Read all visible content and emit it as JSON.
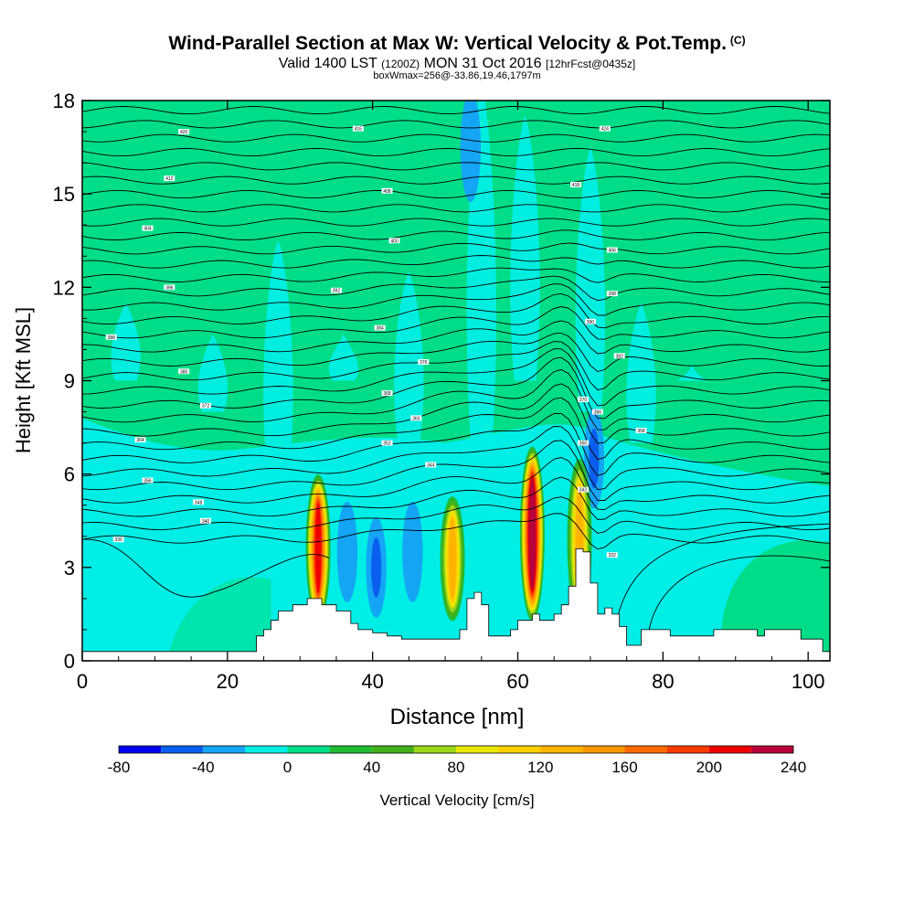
{
  "header": {
    "title": "Wind-Parallel Section at Max W: Vertical Velocity & Pot.Temp.",
    "copyright": "(C)",
    "valid_pre": "Valid 1400 LST",
    "valid_z": "(1200Z)",
    "valid_date": "MON 31 Oct 2016",
    "forecast": "[12hrFcst@0435z]",
    "box_info": "boxWmax=256@-33.86,19.46,1797m"
  },
  "chart_data": {
    "type": "heatmap",
    "title": "Wind-Parallel Section at Max W: Vertical Velocity & Pot.Temp.",
    "xlabel": "Distance [nm]",
    "ylabel": "Height [Kft MSL]",
    "xlim": [
      0,
      103
    ],
    "ylim": [
      0,
      18
    ],
    "x_ticks": [
      0,
      20,
      40,
      60,
      80,
      100
    ],
    "x_tick_labels": [
      "0",
      "20",
      "40",
      "60",
      "80",
      "100"
    ],
    "y_ticks": [
      0,
      3,
      6,
      9,
      12,
      15,
      18
    ],
    "y_tick_labels": [
      "0",
      "3",
      "6",
      "9",
      "12",
      "15",
      "18"
    ],
    "colorbar": {
      "label": "Vertical Velocity [cm/s]",
      "levels": [
        -80,
        -60,
        -40,
        -20,
        0,
        20,
        40,
        60,
        80,
        100,
        120,
        140,
        160,
        180,
        200,
        220,
        240
      ],
      "tick_labels": [
        "-80",
        "-40",
        "0",
        "40",
        "80",
        "120",
        "160",
        "200",
        "240"
      ],
      "colors": [
        "#0000ee",
        "#0a5ff0",
        "#14a5f5",
        "#00eee5",
        "#00dd88",
        "#22bb33",
        "#44b01a",
        "#99d61a",
        "#e8e800",
        "#ffd000",
        "#ffb500",
        "#ff9900",
        "#ff6a00",
        "#ff3a00",
        "#ee0000",
        "#b8003a"
      ]
    },
    "terrain": [
      [
        0,
        0.3
      ],
      [
        23,
        0.3
      ],
      [
        24,
        0.8
      ],
      [
        25,
        1.0
      ],
      [
        26,
        1.3
      ],
      [
        27,
        1.6
      ],
      [
        29,
        1.8
      ],
      [
        31,
        2.0
      ],
      [
        33,
        1.8
      ],
      [
        35,
        1.6
      ],
      [
        37,
        1.2
      ],
      [
        38,
        1.0
      ],
      [
        40,
        0.9
      ],
      [
        42,
        0.8
      ],
      [
        44,
        0.7
      ],
      [
        50,
        0.7
      ],
      [
        52,
        1.0
      ],
      [
        53,
        2.0
      ],
      [
        54,
        2.2
      ],
      [
        55,
        1.8
      ],
      [
        56,
        0.8
      ],
      [
        58,
        0.8
      ],
      [
        59,
        1.0
      ],
      [
        60,
        1.3
      ],
      [
        62,
        1.5
      ],
      [
        63,
        1.3
      ],
      [
        65,
        1.5
      ],
      [
        66,
        1.8
      ],
      [
        67,
        2.4
      ],
      [
        68,
        3.6
      ],
      [
        69,
        3.5
      ],
      [
        70,
        2.5
      ],
      [
        71,
        1.5
      ],
      [
        72,
        1.7
      ],
      [
        73,
        1.5
      ],
      [
        74,
        1.1
      ],
      [
        75,
        0.5
      ],
      [
        77,
        1.0
      ],
      [
        80,
        1.0
      ],
      [
        81,
        0.8
      ],
      [
        86,
        0.8
      ],
      [
        87,
        1.0
      ],
      [
        91,
        1.0
      ],
      [
        93,
        0.8
      ],
      [
        94,
        1.0
      ],
      [
        98,
        1.0
      ],
      [
        99,
        0.7
      ],
      [
        102,
        0.3
      ],
      [
        103,
        0.3
      ]
    ],
    "updrafts": [
      {
        "x": 32.5,
        "top_kft": 6.1,
        "max_cms": 200
      },
      {
        "x": 51.0,
        "top_kft": 5.4,
        "max_cms": 130
      },
      {
        "x": 62.0,
        "top_kft": 7.0,
        "max_cms": 240
      },
      {
        "x": 68.5,
        "top_kft": 6.6,
        "max_cms": 120
      }
    ],
    "downdrafts": [
      {
        "x": 36.5,
        "height_kft": 3.5,
        "min_cms": -40
      },
      {
        "x": 40.5,
        "height_kft": 3.0,
        "min_cms": -60
      },
      {
        "x": 45.5,
        "height_kft": 3.5,
        "min_cms": -40
      },
      {
        "x": 70.5,
        "height_kft": 6.5,
        "min_cms": -60
      },
      {
        "x": 53.5,
        "height_kft": 16.5,
        "min_cms": -40
      }
    ],
    "isentropes_note": "Potential temperature contours (K) shown as thin black lines",
    "isentrope_labels": [
      {
        "x": 14,
        "y": 17.0,
        "text": "420"
      },
      {
        "x": 38,
        "y": 17.1,
        "text": "416"
      },
      {
        "x": 12,
        "y": 15.5,
        "text": "412"
      },
      {
        "x": 42,
        "y": 15.1,
        "text": "408"
      },
      {
        "x": 9,
        "y": 13.9,
        "text": "404"
      },
      {
        "x": 43,
        "y": 13.5,
        "text": "400"
      },
      {
        "x": 12,
        "y": 12.0,
        "text": "396"
      },
      {
        "x": 35,
        "y": 11.9,
        "text": "392"
      },
      {
        "x": 4,
        "y": 10.4,
        "text": "388"
      },
      {
        "x": 41,
        "y": 10.7,
        "text": "384"
      },
      {
        "x": 14,
        "y": 9.3,
        "text": "380"
      },
      {
        "x": 47,
        "y": 9.6,
        "text": "376"
      },
      {
        "x": 17,
        "y": 8.2,
        "text": "372"
      },
      {
        "x": 42,
        "y": 8.6,
        "text": "368"
      },
      {
        "x": 8,
        "y": 7.1,
        "text": "364"
      },
      {
        "x": 46,
        "y": 7.8,
        "text": "360"
      },
      {
        "x": 9,
        "y": 5.8,
        "text": "356"
      },
      {
        "x": 42,
        "y": 7.0,
        "text": "352"
      },
      {
        "x": 16,
        "y": 5.1,
        "text": "348"
      },
      {
        "x": 48,
        "y": 6.3,
        "text": "344"
      },
      {
        "x": 17,
        "y": 4.5,
        "text": "340"
      },
      {
        "x": 5,
        "y": 3.9,
        "text": "336"
      },
      {
        "x": 72,
        "y": 17.1,
        "text": "424"
      },
      {
        "x": 68,
        "y": 15.3,
        "text": "418"
      },
      {
        "x": 73,
        "y": 13.2,
        "text": "406"
      },
      {
        "x": 73,
        "y": 11.8,
        "text": "398"
      },
      {
        "x": 70,
        "y": 10.9,
        "text": "390"
      },
      {
        "x": 74,
        "y": 9.8,
        "text": "382"
      },
      {
        "x": 69,
        "y": 8.4,
        "text": "370"
      },
      {
        "x": 71,
        "y": 8.0,
        "text": "366"
      },
      {
        "x": 77,
        "y": 7.4,
        "text": "358"
      },
      {
        "x": 69,
        "y": 7.0,
        "text": "350"
      },
      {
        "x": 69,
        "y": 5.5,
        "text": "342"
      },
      {
        "x": 73,
        "y": 3.4,
        "text": "332"
      }
    ]
  }
}
